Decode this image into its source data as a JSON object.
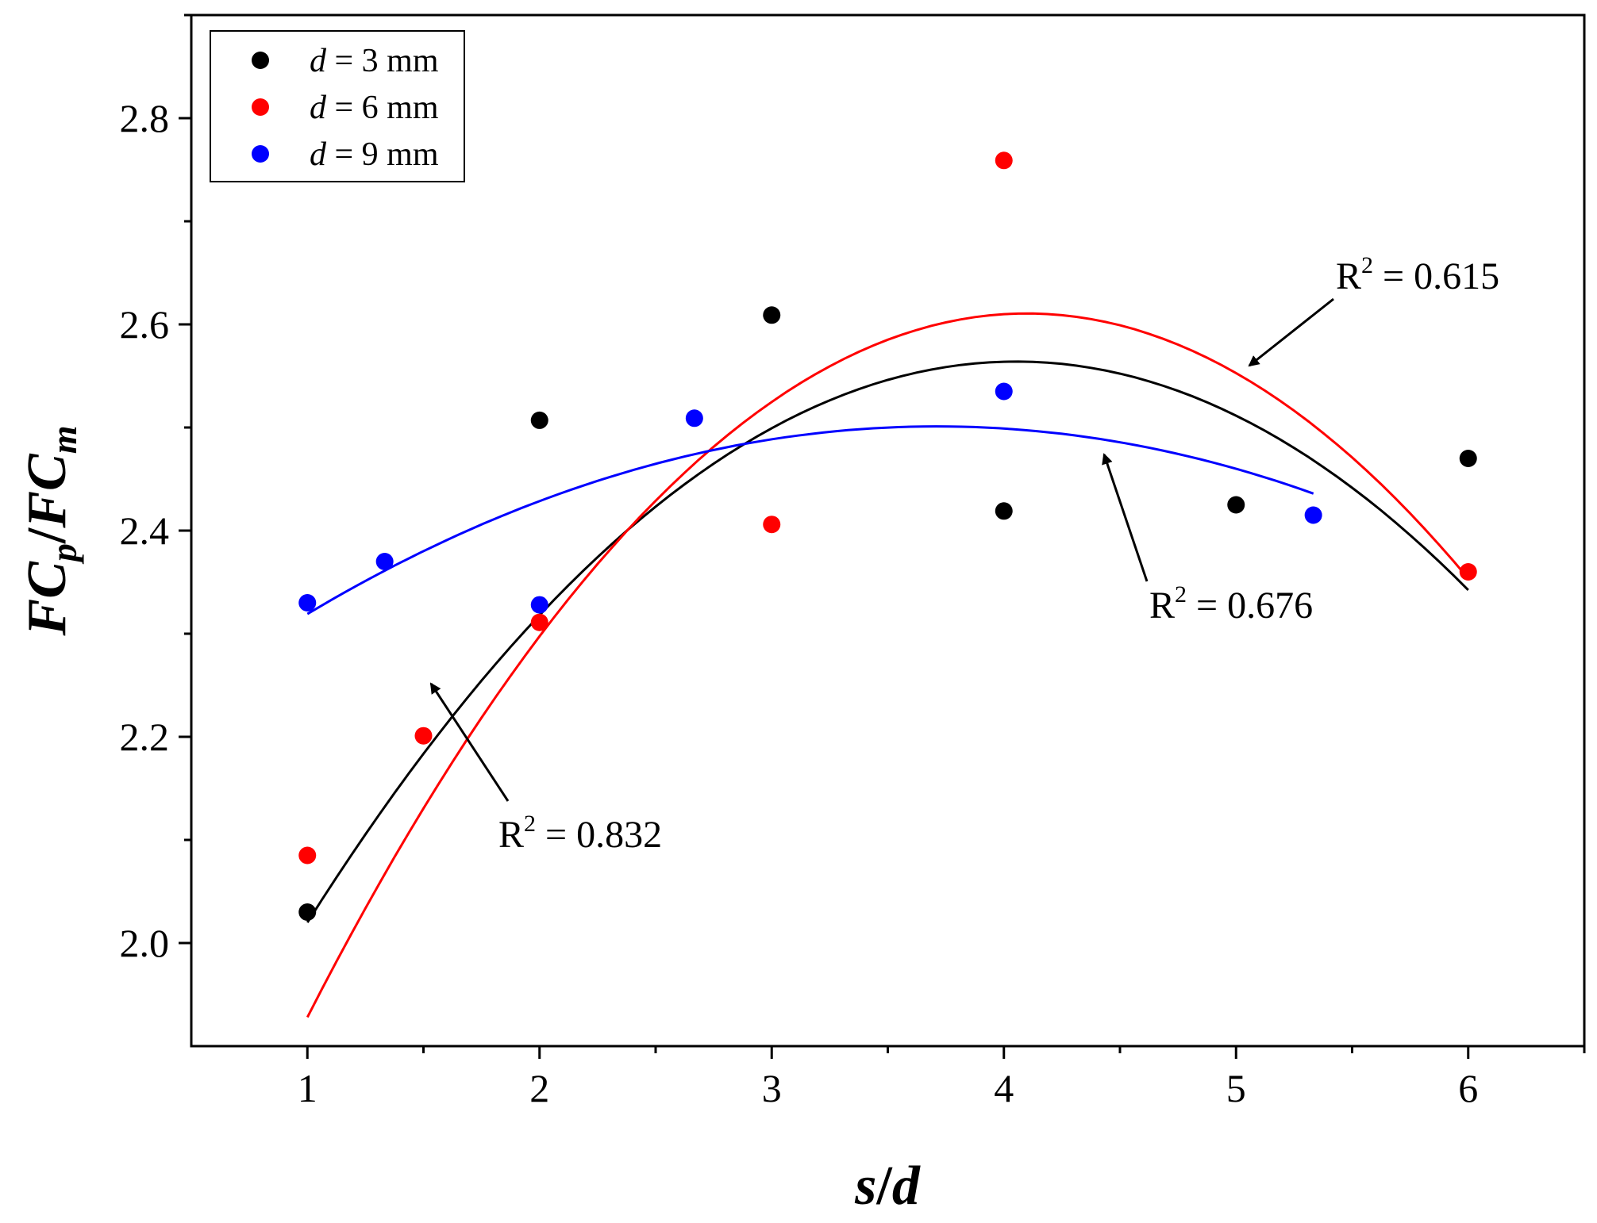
{
  "chart_data": {
    "type": "scatter",
    "xlabel": {
      "main1": "s",
      "sep": "/",
      "main2": "d"
    },
    "ylabel": {
      "p1": "FC",
      "sub1": "p",
      "sep": "/",
      "p2": "FC",
      "sub2": "m"
    },
    "xlim": [
      0.5,
      6.5
    ],
    "ylim": [
      1.9,
      2.9
    ],
    "xticks": [
      1,
      2,
      3,
      4,
      5,
      6
    ],
    "yticks": [
      2.0,
      2.2,
      2.4,
      2.6,
      2.8
    ],
    "ytick_labels": [
      "2.0",
      "2.2",
      "2.4",
      "2.6",
      "2.8"
    ],
    "series": [
      {
        "key": "d3",
        "legend": {
          "var": "d",
          "rest": " = 3 mm"
        },
        "color": "#000000",
        "points": [
          [
            1,
            2.03
          ],
          [
            2,
            2.507
          ],
          [
            3,
            2.609
          ],
          [
            4,
            2.419
          ],
          [
            5,
            2.425
          ],
          [
            6,
            2.47
          ]
        ],
        "fit": {
          "coeffs": [
            1.605,
            0.4733,
            -0.0584
          ],
          "xrange": [
            1,
            6
          ]
        }
      },
      {
        "key": "d6",
        "legend": {
          "var": "d",
          "rest": " = 6 mm"
        },
        "color": "#ff0000",
        "points": [
          [
            1,
            2.085
          ],
          [
            1.5,
            2.201
          ],
          [
            2,
            2.311
          ],
          [
            3,
            2.406
          ],
          [
            4,
            2.759
          ],
          [
            6,
            2.36
          ]
        ],
        "fit": {
          "coeffs": [
            1.4163,
            0.5828,
            -0.0711
          ],
          "xrange": [
            1,
            6
          ]
        }
      },
      {
        "key": "d9",
        "legend": {
          "var": "d",
          "rest": " = 9 mm"
        },
        "color": "#0000ff",
        "points": [
          [
            1,
            2.33
          ],
          [
            1.333,
            2.37
          ],
          [
            2,
            2.328
          ],
          [
            2.667,
            2.509
          ],
          [
            4,
            2.535
          ],
          [
            5.333,
            2.415
          ]
        ],
        "fit": {
          "coeffs": [
            2.1602,
            0.1837,
            -0.02475
          ],
          "xrange": [
            1,
            5.333
          ]
        }
      }
    ],
    "annotations": [
      {
        "key": "r615",
        "text": "R",
        "sup": "2",
        "rest": " = 0.615"
      },
      {
        "key": "r676",
        "text": "R",
        "sup": "2",
        "rest": " = 0.676"
      },
      {
        "key": "r832",
        "text": "R",
        "sup": "2",
        "rest": " = 0.832"
      }
    ]
  }
}
